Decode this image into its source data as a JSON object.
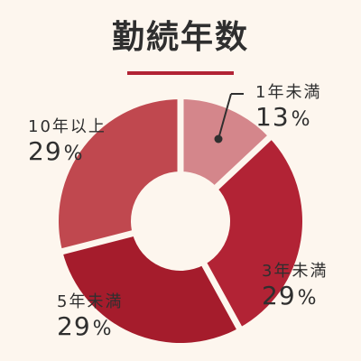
{
  "title": "勤続年数",
  "chart_data": {
    "type": "pie",
    "title": "勤続年数",
    "unit": "%",
    "categories": [
      "1年未満",
      "3年未満",
      "5年未満",
      "10年以上"
    ],
    "values": [
      13,
      29,
      29,
      29
    ],
    "labels": [
      {
        "category": "1年未満",
        "value": "13"
      },
      {
        "category": "3年未満",
        "value": "29"
      },
      {
        "category": "5年未満",
        "value": "29"
      },
      {
        "category": "10年以上",
        "value": "29"
      }
    ],
    "colors": [
      "#d4868b",
      "#b22335",
      "#a51c2c",
      "#c0484f"
    ]
  },
  "colors": {
    "background": "#fdf6ee",
    "accent": "#b22335",
    "text": "#2f2f2f"
  }
}
